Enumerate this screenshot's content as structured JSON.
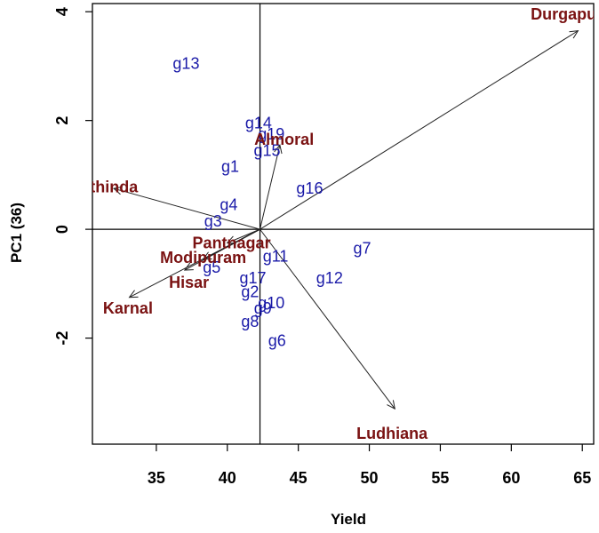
{
  "chart_data": {
    "type": "scatter",
    "title": "",
    "xlabel": "Yield",
    "ylabel": "PC1 (36)",
    "xlim": [
      30.5,
      65.8
    ],
    "ylim": [
      -3.95,
      4.15
    ],
    "xticks": [
      "35",
      "40",
      "45",
      "50",
      "55",
      "60",
      "65"
    ],
    "yticks": [
      "-2",
      "0",
      "2",
      "4"
    ],
    "origin": {
      "x": 42.3,
      "y": 0
    },
    "colors": {
      "genotype": "#1a1aa8",
      "environment": "#7a1212",
      "axes": "#000000"
    },
    "genotypes": [
      {
        "label": "g13",
        "x": 37.1,
        "y": 3.05
      },
      {
        "label": "g14",
        "x": 42.2,
        "y": 1.95
      },
      {
        "label": "g19",
        "x": 43.1,
        "y": 1.75
      },
      {
        "label": "g15",
        "x": 42.8,
        "y": 1.45
      },
      {
        "label": "g1",
        "x": 40.2,
        "y": 1.15
      },
      {
        "label": "g16",
        "x": 45.8,
        "y": 0.75
      },
      {
        "label": "g4",
        "x": 40.1,
        "y": 0.45
      },
      {
        "label": "g3",
        "x": 39.0,
        "y": 0.15
      },
      {
        "label": "g7",
        "x": 49.5,
        "y": -0.35
      },
      {
        "label": "g11",
        "x": 43.4,
        "y": -0.5
      },
      {
        "label": "g5",
        "x": 38.9,
        "y": -0.7
      },
      {
        "label": "g12",
        "x": 47.2,
        "y": -0.9
      },
      {
        "label": "g17",
        "x": 41.8,
        "y": -0.9
      },
      {
        "label": "g2",
        "x": 41.6,
        "y": -1.15
      },
      {
        "label": "g10",
        "x": 43.1,
        "y": -1.35
      },
      {
        "label": "g9",
        "x": 42.5,
        "y": -1.45
      },
      {
        "label": "g8",
        "x": 41.6,
        "y": -1.7
      },
      {
        "label": "g6",
        "x": 43.5,
        "y": -2.05
      }
    ],
    "environments": [
      {
        "label": "Durgapur",
        "x": 64.7,
        "y": 3.65,
        "label_x": 63.9,
        "label_y": 3.95
      },
      {
        "label": "Bathinda",
        "x": 32.0,
        "y": 0.75,
        "label_x": 31.3,
        "label_y": 0.78
      },
      {
        "label": "Ludhiana",
        "x": 51.8,
        "y": -3.3,
        "label_x": 51.6,
        "label_y": -3.75
      },
      {
        "label": "Karnal",
        "x": 33.1,
        "y": -1.25,
        "label_x": 33.0,
        "label_y": -1.45
      },
      {
        "label": "Hisar",
        "x": 37.0,
        "y": -0.75,
        "label_x": 37.3,
        "label_y": -0.98
      },
      {
        "label": "Modipuram",
        "x": 38.3,
        "y": -0.55,
        "label_x": 38.3,
        "label_y": -0.52
      },
      {
        "label": "Pantnagar",
        "x": 40.0,
        "y": -0.25,
        "label_x": 40.3,
        "label_y": -0.25
      },
      {
        "label": "Almoral",
        "x": 43.7,
        "y": 1.55,
        "label_x": 44.0,
        "label_y": 1.65
      }
    ]
  }
}
